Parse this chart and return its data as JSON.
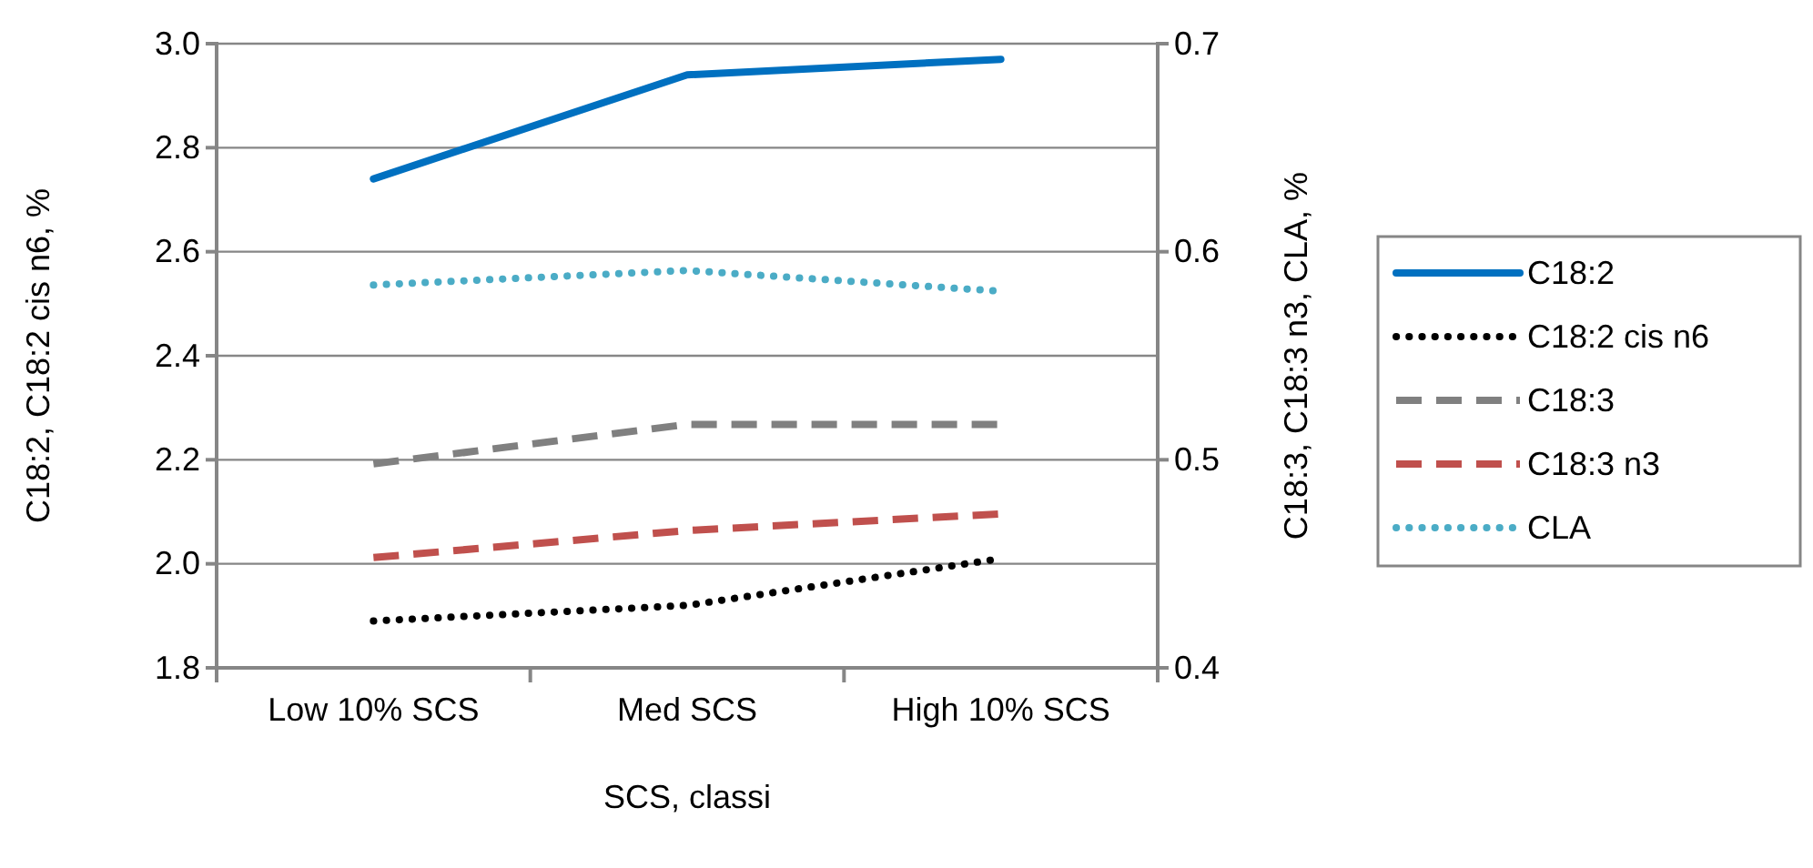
{
  "chart_data": {
    "type": "line",
    "xlabel": "SCS, classi",
    "ylabel": "C18:2, C18:2 cis n6, %",
    "y2label": "C18:3, C18:3 n3, CLA, %",
    "categories": [
      "Low 10% SCS",
      "Med SCS",
      "High 10% SCS"
    ],
    "series": [
      {
        "name": "C18:2",
        "color": "#0070c0",
        "values": [
          2.74,
          2.94,
          2.97
        ],
        "line_style": "solid"
      },
      {
        "name": "C18:2 cis n6",
        "color": "#000000",
        "values": [
          1.89,
          1.92,
          2.01
        ],
        "line_style": "dotted"
      },
      {
        "name": "C18:3",
        "color": "#808080",
        "values": [
          0.498,
          0.517,
          0.517
        ],
        "axis": "y2",
        "line_style": "dashed"
      },
      {
        "name": "C18:3 n3",
        "color": "#c0504d",
        "values": [
          0.453,
          0.466,
          0.474
        ],
        "axis": "y2",
        "line_style": "dashed"
      },
      {
        "name": "CLA",
        "color": "#4bacc6",
        "values": [
          0.584,
          0.591,
          0.581
        ],
        "axis": "y2",
        "line_style": "dotted"
      }
    ],
    "ylim": [
      1.8,
      3.0
    ],
    "yticks": [
      {
        "value": 1.8,
        "label": "1.8"
      },
      {
        "value": 2.0,
        "label": "2.0"
      },
      {
        "value": 2.2,
        "label": "2.2"
      },
      {
        "value": 2.4,
        "label": "2.4"
      },
      {
        "value": 2.6,
        "label": "2.6"
      },
      {
        "value": 2.8,
        "label": "2.8"
      },
      {
        "value": 3.0,
        "label": "3.0"
      }
    ],
    "y2lim": [
      0.4,
      0.7
    ],
    "y2ticks": [
      0.4,
      0.5,
      0.6,
      0.7
    ],
    "grid": "y",
    "legend": "right",
    "marker": "none"
  }
}
